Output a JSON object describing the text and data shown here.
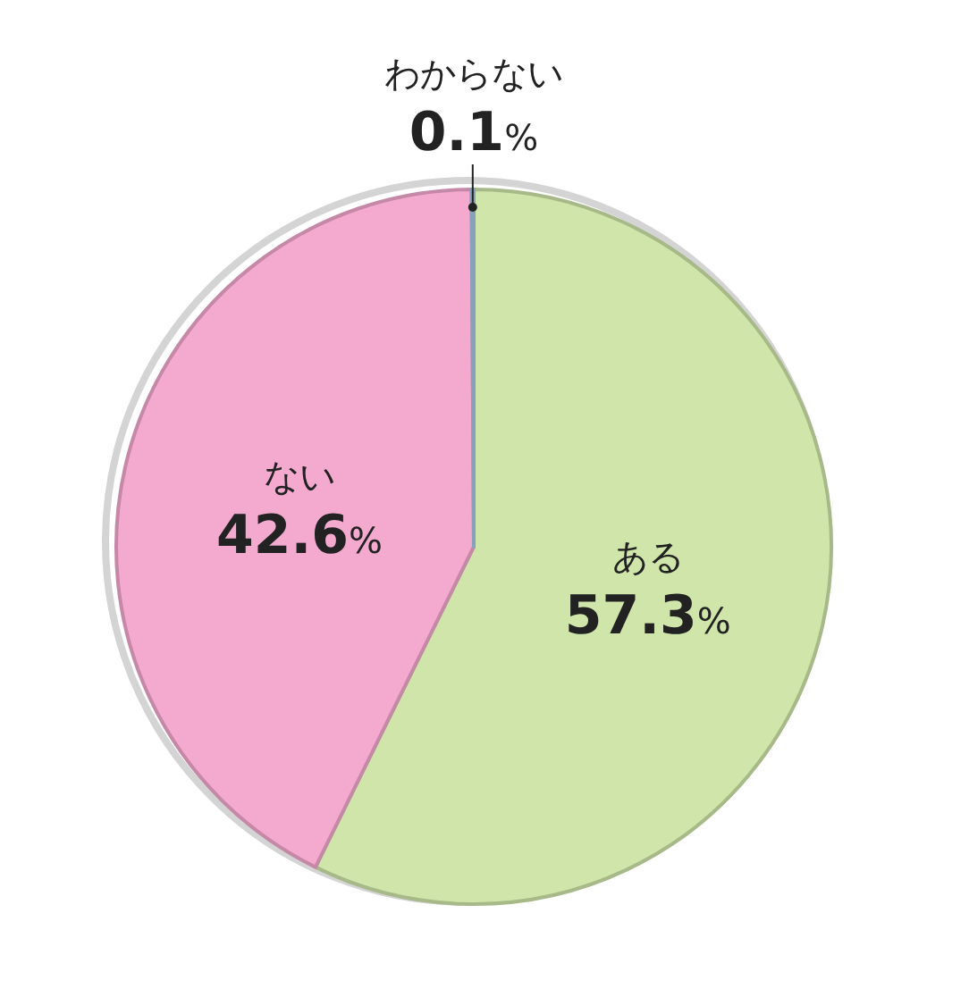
{
  "chart_data": {
    "type": "pie",
    "categories": [
      "ある",
      "ない",
      "わからない"
    ],
    "values": [
      57.3,
      42.6,
      0.1
    ],
    "colors": [
      "#cfe5a9",
      "#f4a9cf",
      "#a9c8e8"
    ],
    "value_labels": [
      "57.3%",
      "42.6%",
      "0.1%"
    ]
  }
}
